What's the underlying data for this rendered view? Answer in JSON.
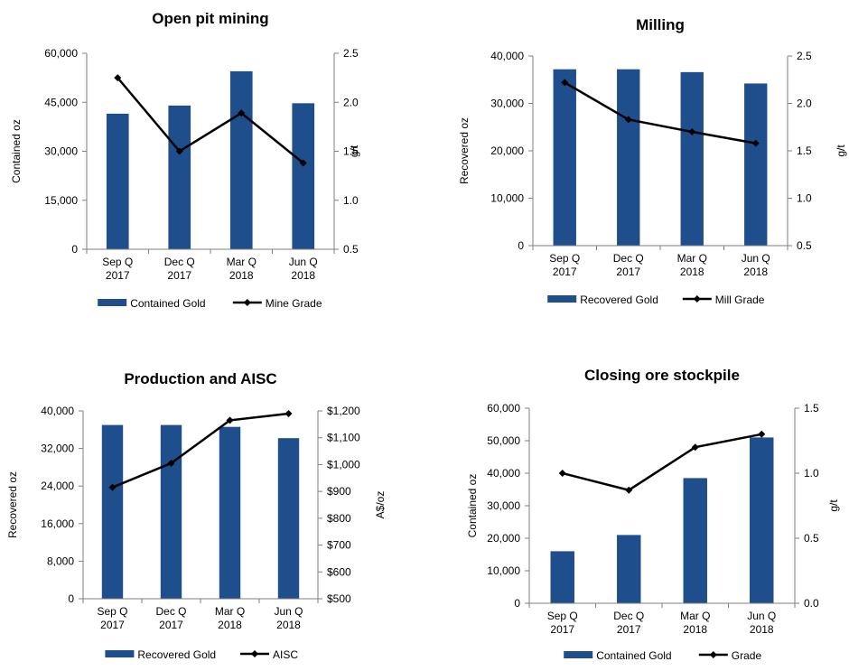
{
  "colors": {
    "bar": "#1F4E8C",
    "line": "#000000",
    "axis": "#7F7F7F"
  },
  "chart_data": [
    {
      "type": "bar",
      "title": "Open pit mining",
      "categories": [
        [
          "Sep Q",
          "2017"
        ],
        [
          "Dec Q",
          "2017"
        ],
        [
          "Mar Q",
          "2018"
        ],
        [
          "Jun Q",
          "2018"
        ]
      ],
      "ylabel": "Contained oz",
      "ylim": [
        0,
        60000
      ],
      "yticks": [
        "0",
        "15,000",
        "30,000",
        "45,000",
        "60,000"
      ],
      "y2label": "g/t",
      "y2lim": [
        0.5,
        2.5
      ],
      "y2ticks": [
        "0.5",
        "1.0",
        "1.5",
        "2.0",
        "2.5"
      ],
      "series": [
        {
          "name": "Contained Gold",
          "type": "bar",
          "values": [
            41500,
            44000,
            54500,
            44700
          ]
        },
        {
          "name": "Mine Grade",
          "type": "line",
          "axis": "right",
          "values": [
            2.25,
            1.5,
            1.89,
            1.38
          ]
        }
      ],
      "legend": "bottom"
    },
    {
      "type": "bar",
      "title": "Milling",
      "categories": [
        [
          "Sep Q",
          "2017"
        ],
        [
          "Dec Q",
          "2017"
        ],
        [
          "Mar Q",
          "2018"
        ],
        [
          "Jun Q",
          "2018"
        ]
      ],
      "ylabel": "Recovered  oz",
      "ylim": [
        0,
        40000
      ],
      "yticks": [
        "0",
        "10,000",
        "20,000",
        "30,000",
        "40,000"
      ],
      "y2label": "g/t",
      "y2lim": [
        0.5,
        2.5
      ],
      "y2ticks": [
        "0.5",
        "1.0",
        "1.5",
        "2.0",
        "2.5"
      ],
      "series": [
        {
          "name": "Recovered Gold",
          "type": "bar",
          "values": [
            37200,
            37200,
            36600,
            34200
          ]
        },
        {
          "name": "Mill Grade",
          "type": "line",
          "axis": "right",
          "values": [
            2.22,
            1.83,
            1.7,
            1.58
          ]
        }
      ],
      "legend": "bottom"
    },
    {
      "type": "bar",
      "title": "Production and AISC",
      "categories": [
        [
          "Sep Q",
          "2017"
        ],
        [
          "Dec Q",
          "2017"
        ],
        [
          "Mar Q",
          "2018"
        ],
        [
          "Jun Q",
          "2018"
        ]
      ],
      "ylabel": "Recovered  oz",
      "ylim": [
        0,
        40000
      ],
      "yticks": [
        "0",
        "8,000",
        "16,000",
        "24,000",
        "32,000",
        "40,000"
      ],
      "y2label": "A$/oz",
      "y2lim": [
        500,
        1200
      ],
      "y2ticks": [
        "$500",
        "$600",
        "$700",
        "$800",
        "$900",
        "$1,000",
        "$1,100",
        "$1,200"
      ],
      "series": [
        {
          "name": "Recovered Gold",
          "type": "bar",
          "values": [
            37000,
            37000,
            36600,
            34200
          ]
        },
        {
          "name": "AISC",
          "type": "line",
          "axis": "right",
          "values": [
            915,
            1005,
            1165,
            1190
          ]
        }
      ],
      "legend": "bottom"
    },
    {
      "type": "bar",
      "title": "Closing ore stockpile",
      "categories": [
        [
          "Sep Q",
          "2017"
        ],
        [
          "Dec Q",
          "2017"
        ],
        [
          "Mar Q",
          "2018"
        ],
        [
          "Jun Q",
          "2018"
        ]
      ],
      "ylabel": "Contained oz",
      "ylim": [
        0,
        60000
      ],
      "yticks": [
        "0",
        "10,000",
        "20,000",
        "30,000",
        "40,000",
        "50,000",
        "60,000"
      ],
      "y2label": "g/t",
      "y2lim": [
        0,
        1.5
      ],
      "y2ticks": [
        "0.0",
        "0.5",
        "1.0",
        "1.5"
      ],
      "series": [
        {
          "name": "Contained Gold",
          "type": "bar",
          "values": [
            16000,
            21000,
            38500,
            51000
          ]
        },
        {
          "name": "Grade",
          "type": "line",
          "axis": "right",
          "values": [
            1.0,
            0.87,
            1.2,
            1.3
          ]
        }
      ],
      "legend": "bottom"
    }
  ]
}
